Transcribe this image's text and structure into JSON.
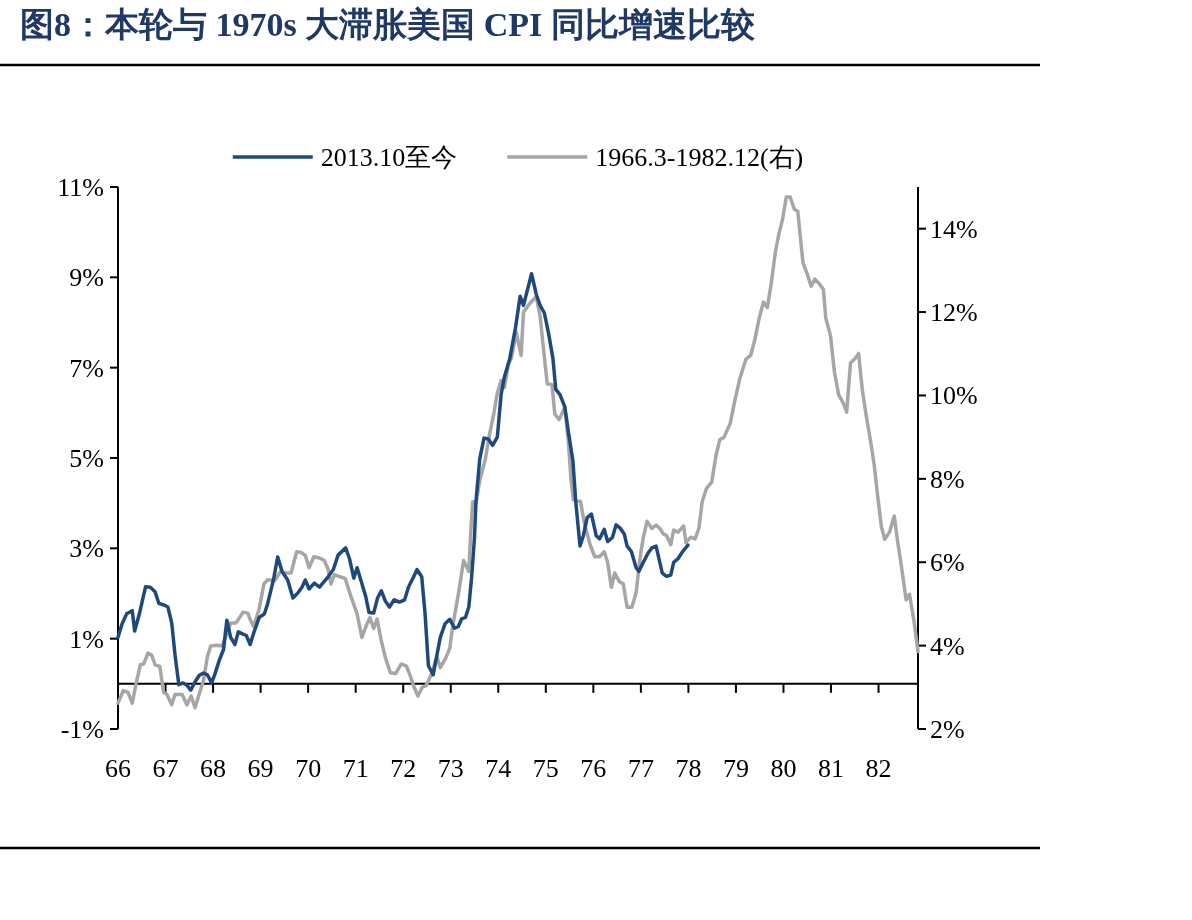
{
  "chart_data": {
    "type": "line",
    "title": "图8：本轮与 1970s 大滞胀美国 CPI 同比增速比较",
    "legend": "top",
    "xlim": [
      66,
      82.83
    ],
    "xticks": [
      66,
      67,
      68,
      69,
      70,
      71,
      72,
      73,
      74,
      75,
      76,
      77,
      78,
      79,
      80,
      81,
      82
    ],
    "ylim": [
      -1,
      11
    ],
    "yticks": [
      {
        "value": -1,
        "label": "-1%"
      },
      {
        "value": 1,
        "label": "1%"
      },
      {
        "value": 3,
        "label": "3%"
      },
      {
        "value": 5,
        "label": "5%"
      },
      {
        "value": 7,
        "label": "7%"
      },
      {
        "value": 9,
        "label": "9%"
      },
      {
        "value": 11,
        "label": "11%"
      }
    ],
    "y2lim": [
      2,
      15
    ],
    "y2ticks": [
      {
        "value": 2,
        "label": "2%"
      },
      {
        "value": 4,
        "label": "4%"
      },
      {
        "value": 6,
        "label": "6%"
      },
      {
        "value": 8,
        "label": "8%"
      },
      {
        "value": 10,
        "label": "10%"
      },
      {
        "value": 12,
        "label": "12%"
      },
      {
        "value": 14,
        "label": "14%"
      }
    ],
    "series": [
      {
        "name": "2013.10至今",
        "color": "#1f497d",
        "x": [
          66.0,
          66.08,
          66.18,
          66.3,
          66.35,
          66.45,
          66.58,
          66.68,
          66.78,
          66.86,
          66.98,
          67.05,
          67.13,
          67.2,
          67.28,
          67.37,
          67.45,
          67.53,
          67.62,
          67.71,
          67.8,
          67.88,
          67.97,
          68.04,
          68.13,
          68.22,
          68.29,
          68.37,
          68.46,
          68.53,
          68.63,
          68.7,
          68.78,
          68.85,
          68.97,
          69.08,
          69.15,
          69.27,
          69.36,
          69.45,
          69.57,
          69.68,
          69.79,
          69.87,
          69.94,
          70.02,
          70.13,
          70.24,
          70.3,
          70.42,
          70.53,
          70.63,
          70.79,
          70.87,
          70.96,
          71.03,
          71.13,
          71.21,
          71.28,
          71.38,
          71.46,
          71.54,
          71.62,
          71.71,
          71.81,
          71.92,
          72.03,
          72.11,
          72.22,
          72.29,
          72.39,
          72.46,
          72.53,
          72.63,
          72.71,
          72.78,
          72.88,
          72.98,
          73.08,
          73.16,
          73.23,
          73.31,
          73.38,
          73.44,
          73.5,
          73.53,
          73.61,
          73.7,
          73.79,
          73.88,
          73.98,
          74.06,
          74.13,
          74.24,
          74.36,
          74.46,
          74.53,
          74.7,
          74.8,
          74.88,
          74.97,
          75.06,
          75.15,
          75.21,
          75.3,
          75.4,
          75.48,
          75.57,
          75.63,
          75.72,
          75.79,
          75.87,
          75.96,
          76.06,
          76.13,
          76.23,
          76.3,
          76.4,
          76.48,
          76.57,
          76.65,
          76.71,
          76.8,
          76.9,
          76.96,
          77.05,
          77.15,
          77.23,
          77.32,
          77.38,
          77.45,
          77.54,
          77.63,
          77.69,
          77.78,
          77.88,
          77.99
        ],
        "values": [
          1.03,
          1.31,
          1.55,
          1.62,
          1.17,
          1.55,
          2.15,
          2.14,
          2.04,
          1.78,
          1.74,
          1.7,
          1.35,
          0.64,
          -0.02,
          0.02,
          -0.03,
          -0.14,
          0.04,
          0.19,
          0.24,
          0.2,
          0.02,
          0.22,
          0.52,
          0.76,
          1.41,
          1.03,
          0.87,
          1.15,
          1.1,
          1.07,
          0.87,
          1.11,
          1.47,
          1.55,
          1.78,
          2.3,
          2.81,
          2.49,
          2.3,
          1.9,
          2.02,
          2.14,
          2.3,
          2.1,
          2.23,
          2.14,
          2.22,
          2.37,
          2.53,
          2.85,
          3.01,
          2.77,
          2.34,
          2.57,
          2.22,
          1.94,
          1.58,
          1.57,
          1.9,
          2.06,
          1.84,
          1.7,
          1.86,
          1.81,
          1.86,
          2.14,
          2.37,
          2.53,
          2.37,
          1.55,
          0.4,
          0.2,
          0.64,
          1.03,
          1.33,
          1.43,
          1.23,
          1.27,
          1.44,
          1.47,
          1.7,
          2.37,
          3.24,
          4.03,
          4.98,
          5.44,
          5.42,
          5.28,
          5.46,
          6.41,
          6.8,
          7.19,
          7.87,
          8.58,
          8.38,
          9.08,
          8.62,
          8.38,
          8.21,
          7.75,
          7.2,
          6.52,
          6.4,
          6.13,
          5.54,
          4.94,
          4.03,
          3.05,
          3.28,
          3.68,
          3.76,
          3.28,
          3.21,
          3.42,
          3.15,
          3.24,
          3.52,
          3.44,
          3.32,
          3.05,
          2.93,
          2.57,
          2.49,
          2.69,
          2.89,
          3.01,
          3.05,
          2.77,
          2.45,
          2.38,
          2.41,
          2.69,
          2.77,
          2.93,
          3.07
        ]
      },
      {
        "name": "1966.3-1982.12(右)",
        "color": "#a6a6a6",
        "axis": "y2",
        "x": [
          66.0,
          66.11,
          66.21,
          66.3,
          66.38,
          66.47,
          66.54,
          66.63,
          66.71,
          66.78,
          66.88,
          66.96,
          67.03,
          67.13,
          67.2,
          67.35,
          67.45,
          67.54,
          67.62,
          67.73,
          67.8,
          67.88,
          67.95,
          68.07,
          68.19,
          68.29,
          68.37,
          68.48,
          68.63,
          68.73,
          68.78,
          68.85,
          68.97,
          69.07,
          69.15,
          69.3,
          69.42,
          69.53,
          69.64,
          69.76,
          69.84,
          69.94,
          70.02,
          70.12,
          70.24,
          70.34,
          70.42,
          70.48,
          70.55,
          70.68,
          70.78,
          70.9,
          71.03,
          71.13,
          71.23,
          71.3,
          71.38,
          71.45,
          71.54,
          71.63,
          71.73,
          71.84,
          71.96,
          72.07,
          72.14,
          72.23,
          72.31,
          72.4,
          72.48,
          72.59,
          72.71,
          72.78,
          72.89,
          72.98,
          73.04,
          73.16,
          73.27,
          73.38,
          73.42,
          73.46,
          73.53,
          73.61,
          73.73,
          73.81,
          73.91,
          73.98,
          74.06,
          74.13,
          74.21,
          74.28,
          74.38,
          74.48,
          74.53,
          74.63,
          74.73,
          74.8,
          74.88,
          74.95,
          75.03,
          75.13,
          75.19,
          75.28,
          75.4,
          75.48,
          75.53,
          75.58,
          75.66,
          75.73,
          75.81,
          75.93,
          76.03,
          76.13,
          76.23,
          76.3,
          76.38,
          76.45,
          76.55,
          76.63,
          76.71,
          76.81,
          76.9,
          76.98,
          77.05,
          77.13,
          77.23,
          77.32,
          77.4,
          77.47,
          77.54,
          77.63,
          77.69,
          77.78,
          77.9,
          77.95,
          78.05,
          78.14,
          78.22,
          78.29,
          78.38,
          78.49,
          78.58,
          78.66,
          78.75,
          78.88,
          78.97,
          79.08,
          79.21,
          79.31,
          79.4,
          79.49,
          79.58,
          79.66,
          79.74,
          79.83,
          79.91,
          79.98,
          80.06,
          80.14,
          80.23,
          80.3,
          80.41,
          80.51,
          80.58,
          80.66,
          80.76,
          80.84,
          80.89,
          80.99,
          81.07,
          81.16,
          81.26,
          81.33,
          81.41,
          81.51,
          81.58,
          81.66,
          81.74,
          81.83,
          81.91,
          81.98,
          82.06,
          82.13,
          82.23,
          82.33,
          82.4,
          82.48,
          82.58,
          82.65,
          82.74,
          82.83
        ],
        "values": [
          2.62,
          2.92,
          2.88,
          2.62,
          3.09,
          3.54,
          3.56,
          3.82,
          3.77,
          3.54,
          3.5,
          2.88,
          2.83,
          2.58,
          2.83,
          2.83,
          2.58,
          2.79,
          2.51,
          2.92,
          3.17,
          3.73,
          3.99,
          4.01,
          3.99,
          4.29,
          4.54,
          4.54,
          4.8,
          4.78,
          4.63,
          4.46,
          4.88,
          5.48,
          5.58,
          5.56,
          5.78,
          5.74,
          5.74,
          6.25,
          6.24,
          6.17,
          5.87,
          6.13,
          6.1,
          6.04,
          5.83,
          5.48,
          5.7,
          5.65,
          5.61,
          5.18,
          4.76,
          4.2,
          4.5,
          4.67,
          4.41,
          4.64,
          4.11,
          3.69,
          3.35,
          3.33,
          3.56,
          3.51,
          3.3,
          3.0,
          2.79,
          3.0,
          3.04,
          3.3,
          3.73,
          3.47,
          3.69,
          3.94,
          4.46,
          5.23,
          6.04,
          5.78,
          6.68,
          7.45,
          7.41,
          7.96,
          8.48,
          9.03,
          9.59,
          10.06,
          10.36,
          10.19,
          10.74,
          10.91,
          11.51,
          10.96,
          11.99,
          12.16,
          12.29,
          12.37,
          11.9,
          11.13,
          10.28,
          10.26,
          9.55,
          9.42,
          9.72,
          8.82,
          7.97,
          7.5,
          7.46,
          7.46,
          6.94,
          6.43,
          6.13,
          6.13,
          6.25,
          6.0,
          5.4,
          5.74,
          5.53,
          5.48,
          4.92,
          4.92,
          5.27,
          6.08,
          6.59,
          6.98,
          6.81,
          6.89,
          6.81,
          6.68,
          6.64,
          6.42,
          6.77,
          6.72,
          6.87,
          6.47,
          6.6,
          6.56,
          6.81,
          7.45,
          7.77,
          7.92,
          8.56,
          8.94,
          9.0,
          9.33,
          9.84,
          10.4,
          10.87,
          10.96,
          11.35,
          11.86,
          12.24,
          12.11,
          12.67,
          13.44,
          13.91,
          14.22,
          14.76,
          14.76,
          14.46,
          14.42,
          13.18,
          12.88,
          12.62,
          12.79,
          12.67,
          12.54,
          11.86,
          11.43,
          10.58,
          10.02,
          9.81,
          9.6,
          10.78,
          10.89,
          11.01,
          10.12,
          9.52,
          8.92,
          8.32,
          7.6,
          6.85,
          6.55,
          6.72,
          7.11,
          6.51,
          5.91,
          5.1,
          5.23,
          4.63,
          3.86
        ]
      }
    ]
  }
}
